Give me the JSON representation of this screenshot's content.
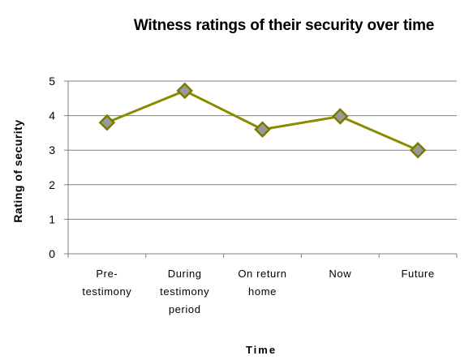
{
  "chart_data": {
    "type": "line",
    "title": "Witness ratings of their security over time",
    "xlabel": "Time",
    "ylabel": "Rating of security",
    "categories": [
      [
        "Pre-",
        "testimony"
      ],
      [
        "During",
        "testimony",
        "period"
      ],
      [
        "On return",
        "home"
      ],
      [
        "Now"
      ],
      [
        "Future"
      ]
    ],
    "series": [
      {
        "values": [
          3.8,
          4.72,
          3.6,
          3.98,
          3.0
        ]
      }
    ],
    "ylim": [
      0,
      5
    ],
    "yticks": [
      "0",
      "1",
      "2",
      "3",
      "4",
      "5"
    ],
    "grid": true,
    "legend": "none",
    "colors": {
      "line": "#8b8b00",
      "marker_fill": "#999999",
      "marker_stroke": "#7a7a00",
      "grid": "#808080",
      "axis": "#808080"
    }
  }
}
